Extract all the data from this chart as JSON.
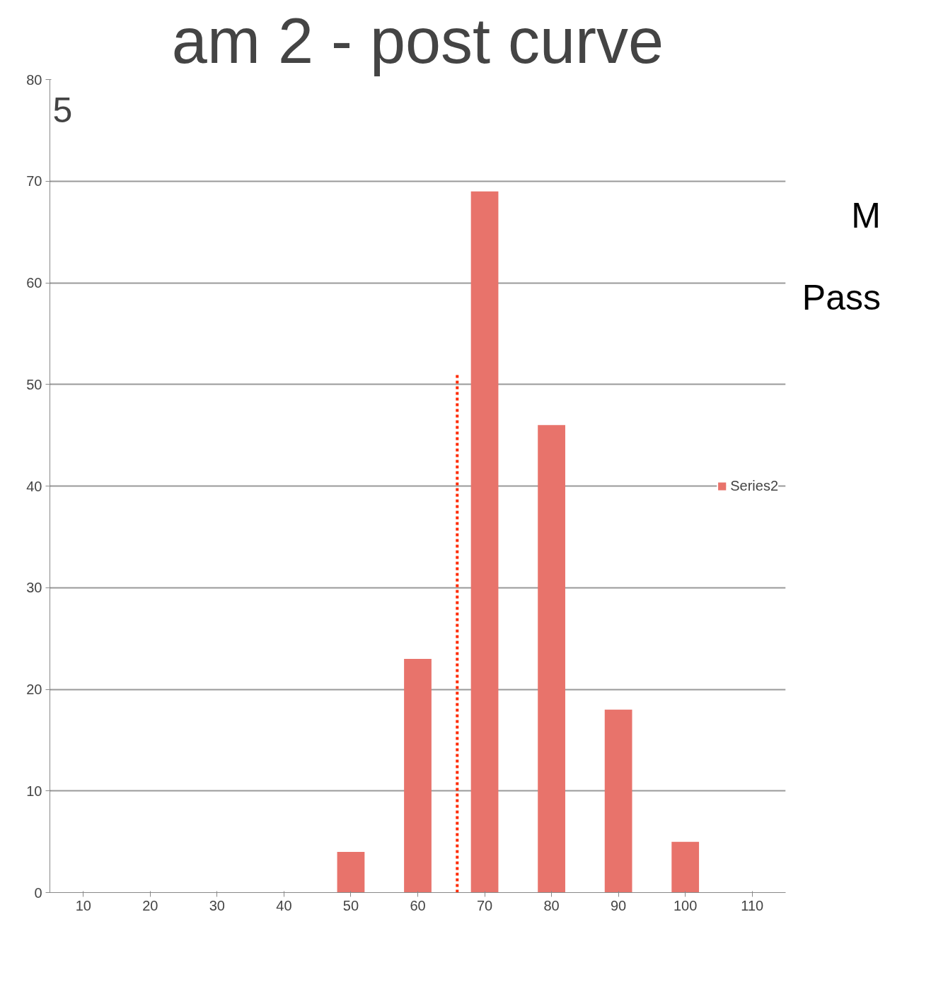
{
  "chart_data": {
    "type": "bar",
    "title": "am 2 - post curve",
    "x": [
      10,
      20,
      30,
      40,
      50,
      60,
      70,
      80,
      90,
      100,
      110
    ],
    "series": [
      {
        "name": "Series2",
        "color": "#e8736b",
        "values": [
          0,
          0,
          0,
          0,
          4,
          23,
          69,
          46,
          18,
          5,
          0
        ]
      },
      {
        "type": "line",
        "color": "#ff2a00",
        "line_style": "dotted",
        "x": [
          65.9,
          65.9
        ],
        "values": [
          0,
          51
        ]
      }
    ],
    "xlim": [
      5,
      115
    ],
    "xticks": [
      10,
      20,
      30,
      40,
      50,
      60,
      70,
      80,
      90,
      100,
      110
    ],
    "ylim": [
      0,
      80
    ],
    "yticks": [
      0,
      10,
      20,
      30,
      40,
      50,
      60,
      70,
      80
    ],
    "grid": "y",
    "legend": "right",
    "annotations": [
      "5",
      "M",
      "Pass"
    ]
  }
}
